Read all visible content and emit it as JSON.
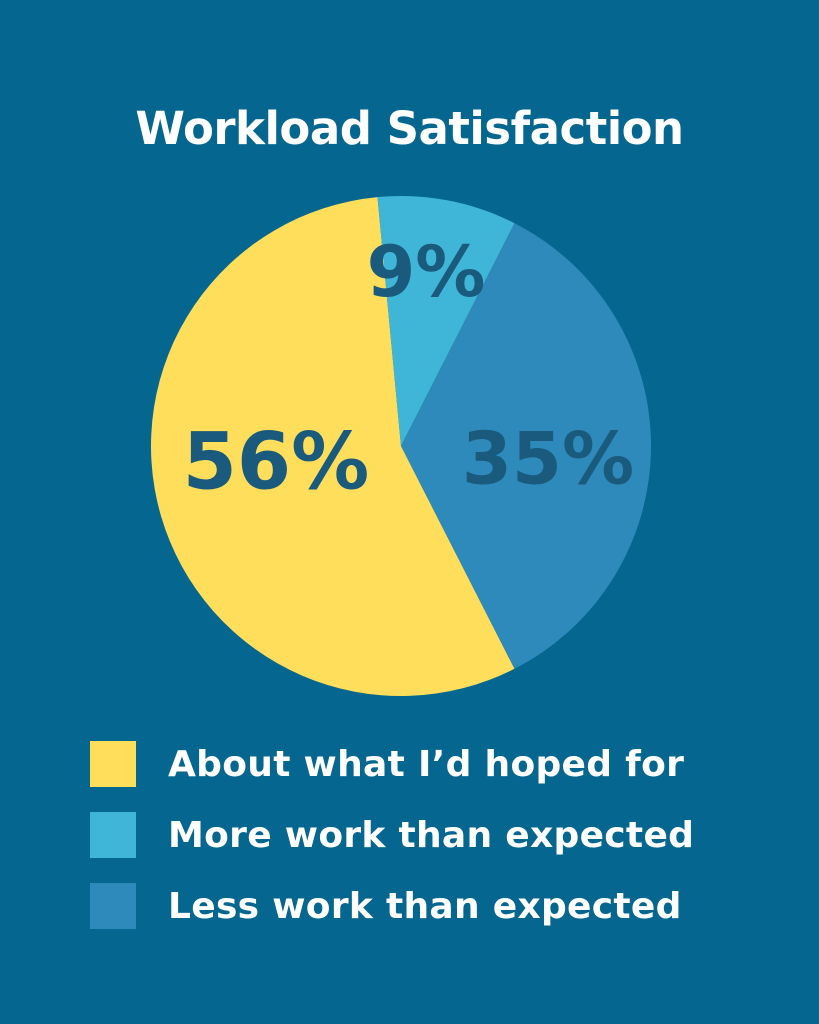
{
  "colors": {
    "background": "#05678f",
    "label_text": "#1a5a7d"
  },
  "chart_data": {
    "type": "pie",
    "title": "Workload Satisfaction",
    "slices": [
      {
        "label": "About what I’d hoped for",
        "value": 56,
        "display": "56%",
        "color": "#ffde5c"
      },
      {
        "label": "More work than expected",
        "value": 9,
        "display": "9%",
        "color": "#3fb6d7"
      },
      {
        "label": "Less work than expected",
        "value": 35,
        "display": "35%",
        "color": "#2e8abb"
      }
    ],
    "legend_position": "bottom-left"
  }
}
